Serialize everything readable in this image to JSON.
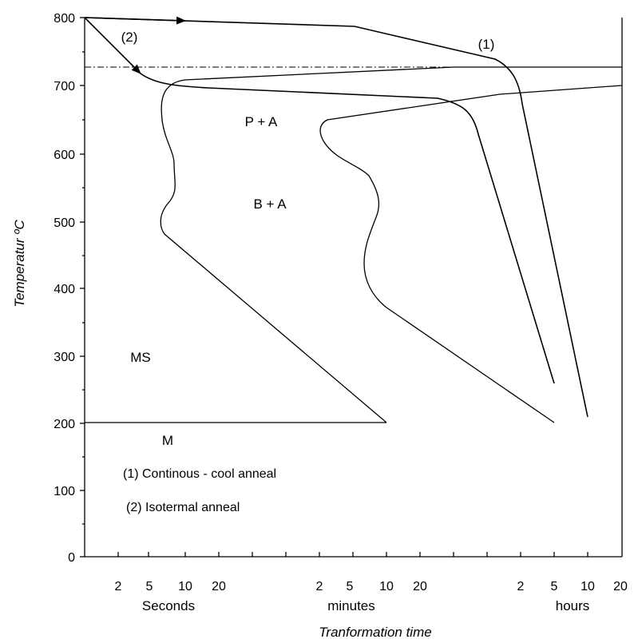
{
  "y_axis": {
    "title": "Temperatur ºC",
    "ticks": [
      "0",
      "100",
      "200",
      "300",
      "400",
      "500",
      "600",
      "700",
      "800"
    ]
  },
  "x_axis": {
    "title": "Tranformation time",
    "seconds_ticks": [
      "2",
      "5",
      "10",
      "20"
    ],
    "minutes_ticks": [
      "2",
      "5",
      "10",
      "20"
    ],
    "hours_ticks": [
      "2",
      "5",
      "10",
      "20"
    ],
    "units": [
      "Seconds",
      "minutes",
      "hours"
    ]
  },
  "regions": {
    "pearlite_austenite": "P + A",
    "bainite_austenite": "B + A",
    "martensite_start": "MS",
    "martensite": "M"
  },
  "path_labels": {
    "continuous": "(1)",
    "isothermal": "(2)"
  },
  "legend": {
    "item1": "(1) Continous - cool anneal",
    "item2": "(2) Isotermal anneal"
  }
}
